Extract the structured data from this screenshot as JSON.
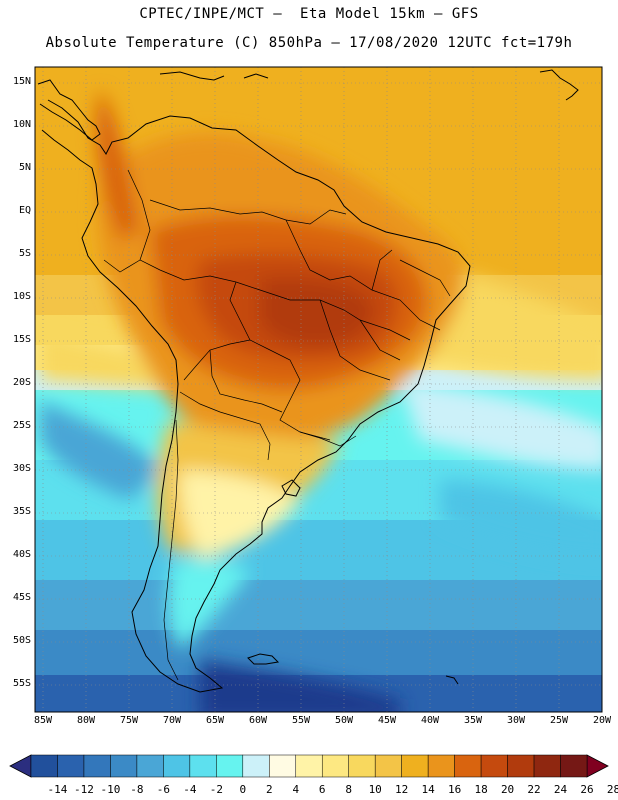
{
  "header": {
    "line1": "CPTEC/INPE/MCT –  Eta Model 15km – GFS",
    "line2": "Absolute Temperature (C) 850hPa – 17/08/2020 12UTC fct=179h"
  },
  "lat_labels": [
    "15N",
    "10N",
    "5N",
    "EQ",
    "5S",
    "10S",
    "15S",
    "20S",
    "25S",
    "30S",
    "35S",
    "40S",
    "45S",
    "50S",
    "55S"
  ],
  "lon_labels": [
    "85W",
    "80W",
    "75W",
    "70W",
    "65W",
    "60W",
    "55W",
    "50W",
    "45W",
    "40W",
    "35W",
    "30W",
    "25W",
    "20W"
  ],
  "colorbar": {
    "labels": [
      "-14",
      "-12",
      "-10",
      "-8",
      "-6",
      "-4",
      "-2",
      "0",
      "2",
      "4",
      "6",
      "8",
      "10",
      "12",
      "14",
      "16",
      "18",
      "20",
      "22",
      "24",
      "26",
      "28"
    ],
    "colors": [
      "#1a3a8c",
      "#21509c",
      "#2a62ae",
      "#3377bb",
      "#3b8ac6",
      "#4aa6d6",
      "#4ec4e6",
      "#5de0ee",
      "#66f3ef",
      "#ccf1f9",
      "#fffbe3",
      "#fff3a7",
      "#fde882",
      "#f8d85e",
      "#f3c447",
      "#efb01f",
      "#ea941c",
      "#d9640f",
      "#c54a0e",
      "#b13b0d",
      "#8f2710",
      "#751815",
      "#800020"
    ]
  },
  "colors": {
    "warm_core": "#c54a0e",
    "ocean_cold": "#2a62ae"
  }
}
